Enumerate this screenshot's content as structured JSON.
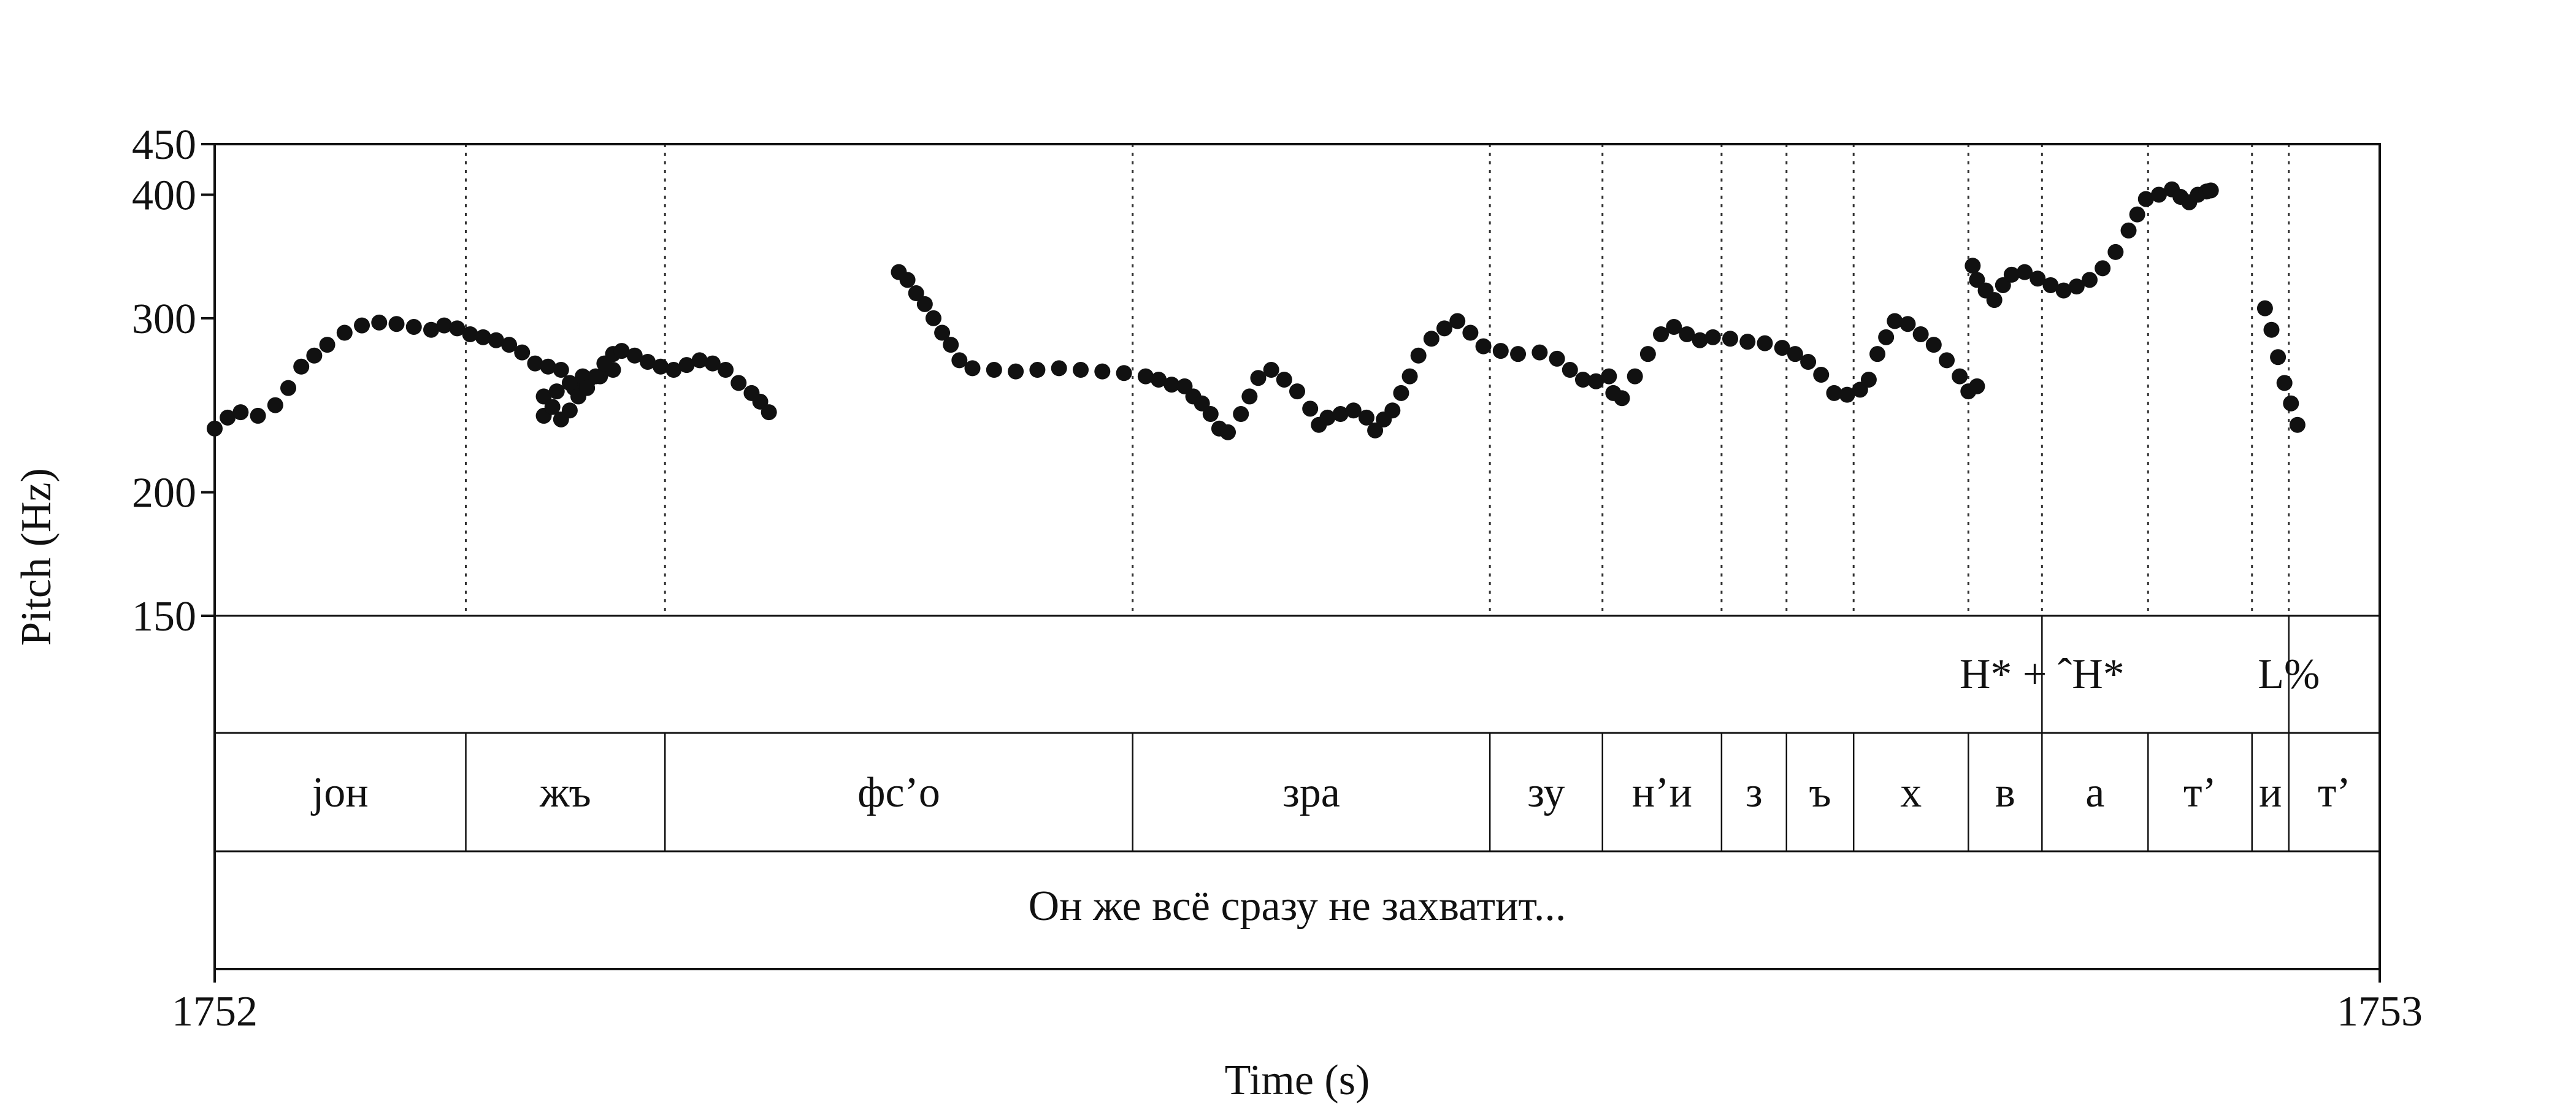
{
  "chart_data": {
    "type": "scatter",
    "ylabel": "Pitch (Hz)",
    "xlabel": "Time (s)",
    "xlim": [
      1752,
      1753
    ],
    "ylim": [
      150,
      450
    ],
    "y_scale": "log",
    "x_ticks": [
      "1752",
      "1753"
    ],
    "y_ticks": [
      {
        "value": 450,
        "label": "450"
      },
      {
        "value": 400,
        "label": "400"
      },
      {
        "value": 300,
        "label": "300"
      },
      {
        "value": 200,
        "label": "200"
      },
      {
        "value": 150,
        "label": "150"
      }
    ],
    "grid": false,
    "boundaries": [
      1752.116,
      1752.208,
      1752.424,
      1752.589,
      1752.641,
      1752.696,
      1752.726,
      1752.757,
      1752.81,
      1752.844,
      1752.893,
      1752.941,
      1752.958
    ],
    "pitch_points": [
      [
        1752.0,
        232
      ],
      [
        1752.006,
        238
      ],
      [
        1752.012,
        241
      ],
      [
        1752.02,
        239
      ],
      [
        1752.028,
        245
      ],
      [
        1752.034,
        255
      ],
      [
        1752.04,
        268
      ],
      [
        1752.046,
        275
      ],
      [
        1752.052,
        282
      ],
      [
        1752.06,
        290
      ],
      [
        1752.068,
        295
      ],
      [
        1752.076,
        297
      ],
      [
        1752.084,
        296
      ],
      [
        1752.092,
        294
      ],
      [
        1752.1,
        292
      ],
      [
        1752.106,
        295
      ],
      [
        1752.112,
        293
      ],
      [
        1752.118,
        289
      ],
      [
        1752.124,
        287
      ],
      [
        1752.13,
        285
      ],
      [
        1752.136,
        282
      ],
      [
        1752.142,
        277
      ],
      [
        1752.148,
        270
      ],
      [
        1752.154,
        268
      ],
      [
        1752.16,
        266
      ],
      [
        1752.166,
        255
      ],
      [
        1752.172,
        258
      ],
      [
        1752.178,
        262
      ],
      [
        1752.184,
        266
      ],
      [
        1752.152,
        250
      ],
      [
        1752.158,
        253
      ],
      [
        1752.164,
        258
      ],
      [
        1752.17,
        262
      ],
      [
        1752.152,
        239
      ],
      [
        1752.156,
        244
      ],
      [
        1752.16,
        237
      ],
      [
        1752.164,
        242
      ],
      [
        1752.168,
        250
      ],
      [
        1752.172,
        255
      ],
      [
        1752.176,
        262
      ],
      [
        1752.18,
        270
      ],
      [
        1752.184,
        276
      ],
      [
        1752.188,
        278
      ],
      [
        1752.194,
        275
      ],
      [
        1752.2,
        271
      ],
      [
        1752.206,
        268
      ],
      [
        1752.212,
        266
      ],
      [
        1752.218,
        269
      ],
      [
        1752.224,
        272
      ],
      [
        1752.23,
        270
      ],
      [
        1752.236,
        266
      ],
      [
        1752.242,
        258
      ],
      [
        1752.248,
        252
      ],
      [
        1752.252,
        247
      ],
      [
        1752.256,
        241
      ],
      [
        1752.316,
        334
      ],
      [
        1752.32,
        328
      ],
      [
        1752.324,
        318
      ],
      [
        1752.328,
        310
      ],
      [
        1752.332,
        300
      ],
      [
        1752.336,
        290
      ],
      [
        1752.34,
        282
      ],
      [
        1752.344,
        272
      ],
      [
        1752.35,
        267
      ],
      [
        1752.36,
        266
      ],
      [
        1752.37,
        265
      ],
      [
        1752.38,
        266
      ],
      [
        1752.39,
        267
      ],
      [
        1752.4,
        266
      ],
      [
        1752.41,
        265
      ],
      [
        1752.42,
        264
      ],
      [
        1752.43,
        262
      ],
      [
        1752.436,
        260
      ],
      [
        1752.442,
        257
      ],
      [
        1752.448,
        256
      ],
      [
        1752.452,
        250
      ],
      [
        1752.456,
        246
      ],
      [
        1752.46,
        240
      ],
      [
        1752.464,
        232
      ],
      [
        1752.468,
        230
      ],
      [
        1752.474,
        240
      ],
      [
        1752.478,
        250
      ],
      [
        1752.482,
        261
      ],
      [
        1752.488,
        266
      ],
      [
        1752.494,
        260
      ],
      [
        1752.5,
        253
      ],
      [
        1752.506,
        243
      ],
      [
        1752.51,
        234
      ],
      [
        1752.514,
        238
      ],
      [
        1752.52,
        240
      ],
      [
        1752.526,
        242
      ],
      [
        1752.532,
        238
      ],
      [
        1752.536,
        231
      ],
      [
        1752.54,
        237
      ],
      [
        1752.544,
        242
      ],
      [
        1752.548,
        252
      ],
      [
        1752.552,
        262
      ],
      [
        1752.556,
        275
      ],
      [
        1752.562,
        286
      ],
      [
        1752.568,
        293
      ],
      [
        1752.574,
        298
      ],
      [
        1752.58,
        290
      ],
      [
        1752.586,
        281
      ],
      [
        1752.594,
        278
      ],
      [
        1752.602,
        276
      ],
      [
        1752.612,
        277
      ],
      [
        1752.62,
        273
      ],
      [
        1752.626,
        266
      ],
      [
        1752.632,
        260
      ],
      [
        1752.638,
        259
      ],
      [
        1752.644,
        262
      ],
      [
        1752.646,
        252
      ],
      [
        1752.65,
        249
      ],
      [
        1752.656,
        262
      ],
      [
        1752.662,
        276
      ],
      [
        1752.668,
        289
      ],
      [
        1752.674,
        294
      ],
      [
        1752.68,
        289
      ],
      [
        1752.686,
        285
      ],
      [
        1752.692,
        287
      ],
      [
        1752.7,
        286
      ],
      [
        1752.708,
        284
      ],
      [
        1752.716,
        283
      ],
      [
        1752.724,
        280
      ],
      [
        1752.73,
        276
      ],
      [
        1752.736,
        271
      ],
      [
        1752.742,
        263
      ],
      [
        1752.748,
        252
      ],
      [
        1752.754,
        251
      ],
      [
        1752.76,
        254
      ],
      [
        1752.764,
        260
      ],
      [
        1752.768,
        276
      ],
      [
        1752.772,
        287
      ],
      [
        1752.776,
        298
      ],
      [
        1752.782,
        296
      ],
      [
        1752.788,
        289
      ],
      [
        1752.794,
        282
      ],
      [
        1752.8,
        272
      ],
      [
        1752.806,
        262
      ],
      [
        1752.81,
        253
      ],
      [
        1752.814,
        256
      ],
      [
        1752.812,
        339
      ],
      [
        1752.814,
        328
      ],
      [
        1752.818,
        320
      ],
      [
        1752.822,
        313
      ],
      [
        1752.826,
        324
      ],
      [
        1752.83,
        332
      ],
      [
        1752.836,
        334
      ],
      [
        1752.842,
        329
      ],
      [
        1752.848,
        324
      ],
      [
        1752.854,
        320
      ],
      [
        1752.86,
        323
      ],
      [
        1752.866,
        328
      ],
      [
        1752.872,
        337
      ],
      [
        1752.878,
        350
      ],
      [
        1752.884,
        368
      ],
      [
        1752.888,
        382
      ],
      [
        1752.892,
        396
      ],
      [
        1752.898,
        400
      ],
      [
        1752.904,
        405
      ],
      [
        1752.908,
        398
      ],
      [
        1752.912,
        393
      ],
      [
        1752.916,
        400
      ],
      [
        1752.92,
        403
      ],
      [
        1752.922,
        404
      ],
      [
        1752.947,
        307
      ],
      [
        1752.95,
        292
      ],
      [
        1752.953,
        274
      ],
      [
        1752.956,
        258
      ],
      [
        1752.959,
        246
      ],
      [
        1752.962,
        234
      ]
    ]
  },
  "tones_tier": [
    {
      "label": "H* + ˆH*",
      "time": 1752.844
    },
    {
      "label": "L%",
      "time": 1752.958
    }
  ],
  "segments_tier": [
    {
      "label": "jон",
      "start": 1752.0,
      "end": 1752.116
    },
    {
      "label": "жъ",
      "start": 1752.116,
      "end": 1752.208
    },
    {
      "label": "фс’о",
      "start": 1752.208,
      "end": 1752.424
    },
    {
      "label": "зра",
      "start": 1752.424,
      "end": 1752.589
    },
    {
      "label": "зу",
      "start": 1752.589,
      "end": 1752.641
    },
    {
      "label": "н’и",
      "start": 1752.641,
      "end": 1752.696
    },
    {
      "label": "з",
      "start": 1752.696,
      "end": 1752.726
    },
    {
      "label": "ъ",
      "start": 1752.726,
      "end": 1752.757
    },
    {
      "label": "х",
      "start": 1752.757,
      "end": 1752.81
    },
    {
      "label": "в",
      "start": 1752.81,
      "end": 1752.844
    },
    {
      "label": "а",
      "start": 1752.844,
      "end": 1752.893
    },
    {
      "label": "т’",
      "start": 1752.893,
      "end": 1752.941
    },
    {
      "label": "и",
      "start": 1752.941,
      "end": 1752.958
    },
    {
      "label": "т’",
      "start": 1752.958,
      "end": 1753.0
    }
  ],
  "sentence_tier": {
    "label": "Он же всё сразу не захватит...",
    "start": 1752.0,
    "end": 1753.0
  }
}
